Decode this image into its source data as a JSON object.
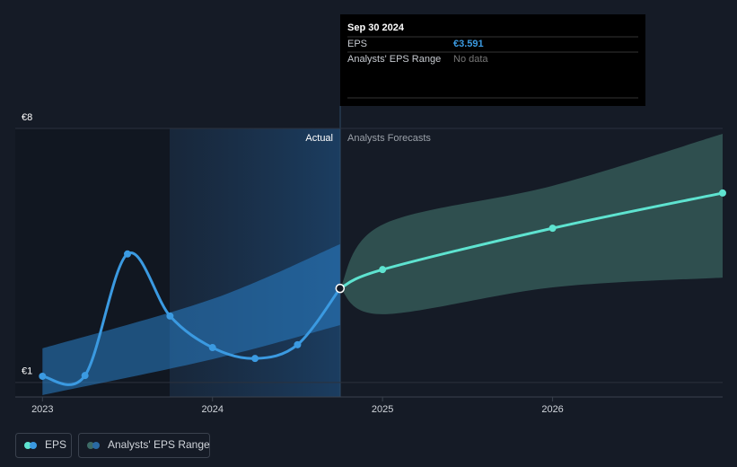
{
  "chart_data": {
    "type": "line",
    "xlim": [
      2022.84,
      2027.0
    ],
    "xticks": [
      2023,
      2024,
      2025,
      2026
    ],
    "ylim": [
      0.6,
      8
    ],
    "yticks": [
      {
        "value": 1,
        "label": "€1"
      },
      {
        "value": 8,
        "label": "€8"
      }
    ],
    "annotations": {
      "actual": "Actual",
      "forecast": "Analysts Forecasts"
    },
    "series": [
      {
        "name": "EPS",
        "color": "#3b9ae1",
        "forecast_color": "#5ee3d0",
        "x": [
          2023.0,
          2023.25,
          2023.5,
          2023.75,
          2024.0,
          2024.25,
          2024.5,
          2024.75
        ],
        "values": [
          1.17,
          1.19,
          4.54,
          2.83,
          1.96,
          1.66,
          2.04,
          3.591
        ],
        "forecast_x": [
          2024.75,
          2025.0,
          2026.0,
          2027.0
        ],
        "forecast_values": [
          3.591,
          4.11,
          5.25,
          6.22
        ]
      },
      {
        "name": "Analysts' EPS Range",
        "color": "#2a7fc9",
        "forecast_color": "#3d6b66",
        "x": [
          2023.0,
          2024.0,
          2024.75
        ],
        "low": [
          0.65,
          1.64,
          2.58
        ],
        "high": [
          1.94,
          3.3,
          4.81
        ],
        "forecast_x": [
          2024.75,
          2025.0,
          2026.0,
          2027.0
        ],
        "forecast_low": [
          3.591,
          2.88,
          3.62,
          3.89
        ],
        "forecast_high": [
          3.591,
          5.35,
          6.42,
          7.85
        ]
      }
    ],
    "tooltip": {
      "date": "Sep 30 2024",
      "rows": [
        {
          "label": "EPS",
          "value": "€3.591"
        },
        {
          "label": "Analysts' EPS Range",
          "value": "No data"
        }
      ]
    }
  }
}
